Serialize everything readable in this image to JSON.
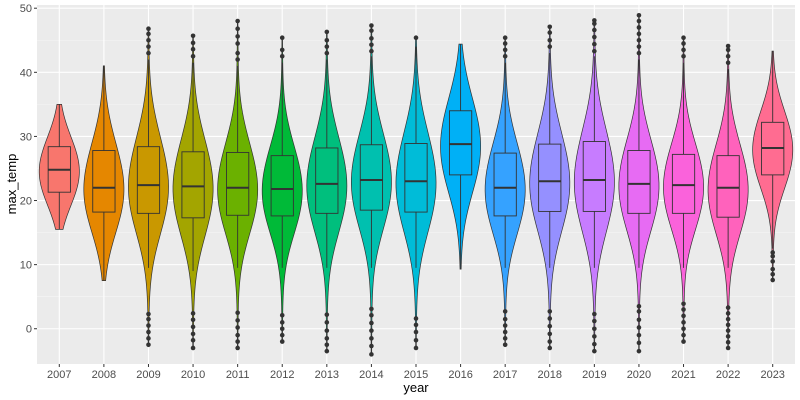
{
  "chart_data": {
    "type": "violin",
    "title": "",
    "xlabel": "year",
    "ylabel": "max_temp",
    "ylim": [
      -5.5,
      50.5
    ],
    "y_ticks": [
      0,
      10,
      20,
      30,
      40,
      50
    ],
    "y_tick_labels": [
      "0",
      "10",
      "20",
      "30",
      "40",
      "50"
    ],
    "grid": true,
    "legend": "none",
    "categories": [
      "2007",
      "2008",
      "2009",
      "2010",
      "2011",
      "2012",
      "2013",
      "2014",
      "2015",
      "2016",
      "2017",
      "2018",
      "2019",
      "2020",
      "2021",
      "2022",
      "2023"
    ],
    "series": [
      {
        "year": "2007",
        "color": "#F8766D",
        "min": 15.5,
        "max": 35.0,
        "q1": 21.3,
        "median": 24.8,
        "q3": 28.4,
        "whisker_low": 15.5,
        "whisker_high": 35.0,
        "outliers": []
      },
      {
        "year": "2008",
        "color": "#E58700",
        "min": 7.5,
        "max": 41.0,
        "q1": 18.2,
        "median": 22.0,
        "q3": 27.8,
        "whisker_low": 7.5,
        "whisker_high": 41.0,
        "outliers": []
      },
      {
        "year": "2009",
        "color": "#C99800",
        "min": -2.5,
        "max": 47.0,
        "q1": 18.0,
        "median": 22.4,
        "q3": 28.4,
        "whisker_low": 9.5,
        "whisker_high": 42.0,
        "outliers": [
          -2.5,
          -1.5,
          -0.5,
          0.5,
          1.5,
          2.3,
          43.0,
          44.0,
          45.0,
          46.0,
          46.8
        ]
      },
      {
        "year": "2010",
        "color": "#A3A500",
        "min": -3.0,
        "max": 45.8,
        "q1": 17.3,
        "median": 22.2,
        "q3": 27.6,
        "whisker_low": 9.0,
        "whisker_high": 41.5,
        "outliers": [
          -3.0,
          -1.8,
          -0.8,
          0.3,
          1.4,
          2.4,
          42.5,
          43.6,
          44.6,
          45.7
        ]
      },
      {
        "year": "2011",
        "color": "#6BB100",
        "min": -3.0,
        "max": 48.2,
        "q1": 17.7,
        "median": 22.0,
        "q3": 27.5,
        "whisker_low": 9.5,
        "whisker_high": 41.0,
        "outliers": [
          -3.0,
          -2.0,
          -1.0,
          0.2,
          1.3,
          2.5,
          42.0,
          43.0,
          44.5,
          45.6,
          46.8,
          48.0
        ]
      },
      {
        "year": "2012",
        "color": "#00BA38",
        "min": -2.0,
        "max": 45.5,
        "q1": 17.6,
        "median": 21.8,
        "q3": 27.0,
        "whisker_low": 9.5,
        "whisker_high": 41.5,
        "outliers": [
          -2.0,
          -1.0,
          0.0,
          1.0,
          2.1,
          42.5,
          43.5,
          45.4
        ]
      },
      {
        "year": "2013",
        "color": "#00BF7D",
        "min": -3.5,
        "max": 46.5,
        "q1": 18.0,
        "median": 22.6,
        "q3": 28.2,
        "whisker_low": 9.5,
        "whisker_high": 42.0,
        "outliers": [
          -3.5,
          -2.5,
          -1.5,
          -0.3,
          1.0,
          2.2,
          43.0,
          44.0,
          45.0,
          46.3
        ]
      },
      {
        "year": "2014",
        "color": "#00C0AF",
        "min": -4.0,
        "max": 47.4,
        "q1": 18.5,
        "median": 23.2,
        "q3": 28.7,
        "whisker_low": 9.5,
        "whisker_high": 42.5,
        "outliers": [
          -4.0,
          -2.7,
          -1.5,
          -0.3,
          0.9,
          2.1,
          3.1,
          43.3,
          44.3,
          45.3,
          46.5,
          47.3
        ]
      },
      {
        "year": "2015",
        "color": "#00BCD8",
        "min": -3.0,
        "max": 45.5,
        "q1": 18.2,
        "median": 23.0,
        "q3": 28.9,
        "whisker_low": 9.5,
        "whisker_high": 44.0,
        "outliers": [
          -3.0,
          -1.8,
          -0.5,
          0.6,
          1.6,
          45.4
        ]
      },
      {
        "year": "2016",
        "color": "#00B0F6",
        "min": 9.3,
        "max": 44.4,
        "q1": 24.0,
        "median": 28.8,
        "q3": 34.0,
        "whisker_low": 9.3,
        "whisker_high": 44.4,
        "outliers": []
      },
      {
        "year": "2017",
        "color": "#35A2FF",
        "min": -2.5,
        "max": 45.5,
        "q1": 17.6,
        "median": 22.0,
        "q3": 27.4,
        "whisker_low": 9.5,
        "whisker_high": 41.5,
        "outliers": [
          -2.5,
          -1.5,
          -0.5,
          0.5,
          1.5,
          2.7,
          42.5,
          43.5,
          44.5,
          45.4
        ]
      },
      {
        "year": "2018",
        "color": "#9590FF",
        "min": -3.0,
        "max": 47.2,
        "q1": 18.3,
        "median": 23.0,
        "q3": 28.8,
        "whisker_low": 9.5,
        "whisker_high": 43.0,
        "outliers": [
          -3.0,
          -2.0,
          -0.8,
          0.4,
          1.6,
          2.7,
          44.0,
          45.0,
          46.2,
          47.1
        ]
      },
      {
        "year": "2019",
        "color": "#C77CFF",
        "min": -3.5,
        "max": 48.2,
        "q1": 18.3,
        "median": 23.2,
        "q3": 29.2,
        "whisker_low": 9.5,
        "whisker_high": 42.5,
        "outliers": [
          -3.5,
          -2.4,
          -1.2,
          0.0,
          1.2,
          2.3,
          43.3,
          44.4,
          45.5,
          46.6,
          47.6,
          48.1
        ]
      },
      {
        "year": "2020",
        "color": "#E76BF3",
        "min": -3.5,
        "max": 49.0,
        "q1": 18.0,
        "median": 22.6,
        "q3": 27.8,
        "whisker_low": 9.5,
        "whisker_high": 42.0,
        "outliers": [
          -3.5,
          -2.2,
          -1.0,
          0.2,
          1.4,
          2.7,
          3.5,
          43.0,
          44.0,
          45.0,
          46.0,
          47.0,
          48.0,
          48.9
        ]
      },
      {
        "year": "2021",
        "color": "#FA62DB",
        "min": -2.0,
        "max": 45.5,
        "q1": 18.0,
        "median": 22.4,
        "q3": 27.2,
        "whisker_low": 9.5,
        "whisker_high": 41.5,
        "outliers": [
          -2.0,
          -1.0,
          0.0,
          1.0,
          2.0,
          3.0,
          3.9,
          42.5,
          43.5,
          44.5,
          45.4
        ]
      },
      {
        "year": "2022",
        "color": "#FF62BC",
        "min": -3.0,
        "max": 44.2,
        "q1": 17.4,
        "median": 22.0,
        "q3": 27.0,
        "whisker_low": 9.5,
        "whisker_high": 40.5,
        "outliers": [
          -3.0,
          -2.1,
          -1.2,
          -0.3,
          0.6,
          1.5,
          2.4,
          3.3,
          41.5,
          42.5,
          43.5,
          44.1
        ]
      },
      {
        "year": "2023",
        "color": "#FF6C91",
        "min": 7.5,
        "max": 43.3,
        "q1": 24.0,
        "median": 28.2,
        "q3": 32.2,
        "whisker_low": 12.5,
        "whisker_high": 43.3,
        "outliers": [
          7.6,
          8.5,
          9.3,
          10.5,
          11.3,
          11.9
        ]
      }
    ]
  }
}
